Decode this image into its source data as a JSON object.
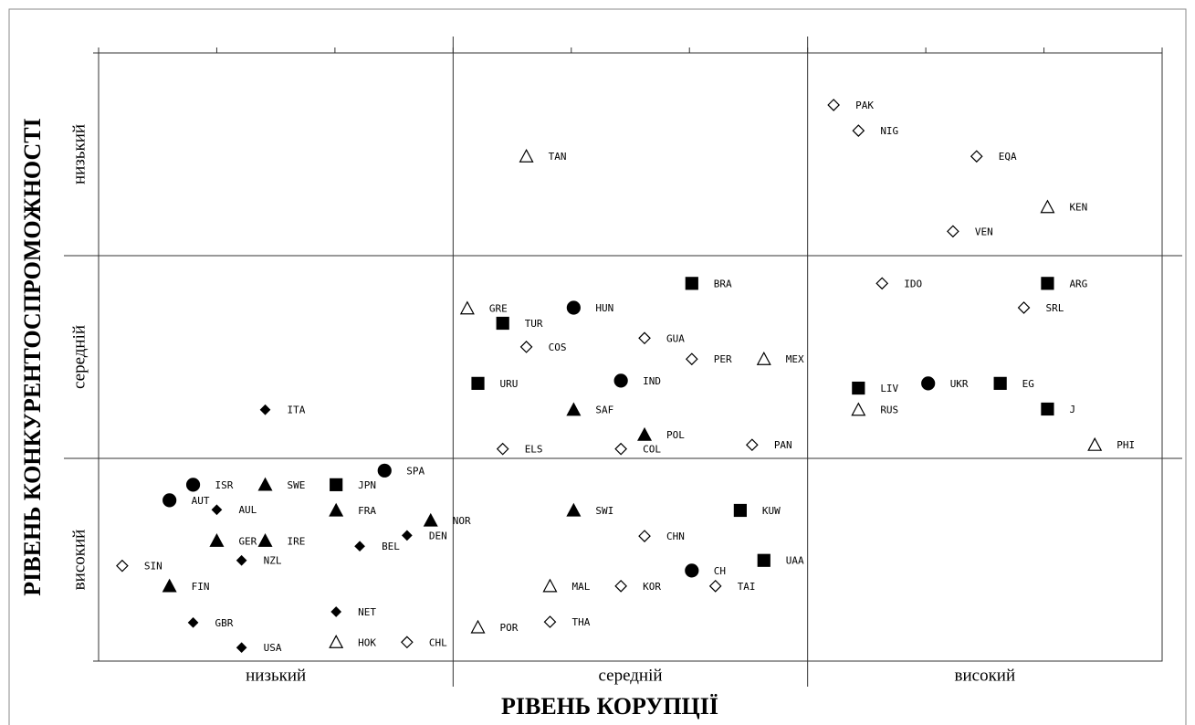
{
  "chart_data": {
    "type": "scatter",
    "xlabel": "РІВЕНЬ КОРУПЦІЇ",
    "ylabel": "РІВЕНЬ КОНКУРЕНТОСПРОМОЖНОСТІ",
    "x_categories": [
      "низький",
      "середній",
      "високий"
    ],
    "y_categories": [
      "високий",
      "середній",
      "низький"
    ],
    "xlim": [
      0,
      9
    ],
    "ylim": [
      0,
      9
    ],
    "xticks": [
      0,
      1,
      2,
      3,
      4,
      5,
      6,
      7,
      8,
      9
    ],
    "yticks": [
      0,
      3,
      6,
      9
    ],
    "xgrid": [
      3,
      6
    ],
    "ygrid": [
      3,
      6
    ],
    "color": "#000000",
    "points": [
      {
        "label": "PAK",
        "x": 6.22,
        "y": 8.23,
        "marker": "diamond-open"
      },
      {
        "label": "NIG",
        "x": 6.43,
        "y": 7.85,
        "marker": "diamond-open"
      },
      {
        "label": "EQA",
        "x": 7.43,
        "y": 7.47,
        "marker": "diamond-open"
      },
      {
        "label": "KEN",
        "x": 8.03,
        "y": 6.72,
        "marker": "triangle-open"
      },
      {
        "label": "VEN",
        "x": 7.23,
        "y": 6.36,
        "marker": "diamond-open"
      },
      {
        "label": "TAN",
        "x": 3.62,
        "y": 7.47,
        "marker": "triangle-open"
      },
      {
        "label": "BRA",
        "x": 5.02,
        "y": 5.59,
        "marker": "square"
      },
      {
        "label": "IDO",
        "x": 6.63,
        "y": 5.59,
        "marker": "diamond-open"
      },
      {
        "label": "ARG",
        "x": 8.03,
        "y": 5.59,
        "marker": "square"
      },
      {
        "label": "GRE",
        "x": 3.12,
        "y": 5.22,
        "marker": "triangle-open"
      },
      {
        "label": "HUN",
        "x": 4.02,
        "y": 5.23,
        "marker": "circle"
      },
      {
        "label": "SRL",
        "x": 7.83,
        "y": 5.23,
        "marker": "diamond-open"
      },
      {
        "label": "TUR",
        "x": 3.42,
        "y": 5.0,
        "marker": "square"
      },
      {
        "label": "GUA",
        "x": 4.62,
        "y": 4.78,
        "marker": "diamond-open"
      },
      {
        "label": "COS",
        "x": 3.62,
        "y": 4.65,
        "marker": "diamond-open"
      },
      {
        "label": "PER",
        "x": 5.02,
        "y": 4.47,
        "marker": "diamond-open"
      },
      {
        "label": "MEX",
        "x": 5.63,
        "y": 4.47,
        "marker": "triangle-open"
      },
      {
        "label": "URU",
        "x": 3.21,
        "y": 4.11,
        "marker": "square"
      },
      {
        "label": "IND",
        "x": 4.42,
        "y": 4.15,
        "marker": "circle"
      },
      {
        "label": "LIV",
        "x": 6.43,
        "y": 4.04,
        "marker": "square"
      },
      {
        "label": "UKR",
        "x": 7.02,
        "y": 4.11,
        "marker": "circle"
      },
      {
        "label": "EG",
        "x": 7.63,
        "y": 4.11,
        "marker": "square"
      },
      {
        "label": "ITA",
        "x": 1.41,
        "y": 3.72,
        "marker": "diamond"
      },
      {
        "label": "SAF",
        "x": 4.02,
        "y": 3.72,
        "marker": "triangle"
      },
      {
        "label": "RUS",
        "x": 6.43,
        "y": 3.72,
        "marker": "triangle-open"
      },
      {
        "label": "J",
        "x": 8.03,
        "y": 3.73,
        "marker": "square"
      },
      {
        "label": "POL",
        "x": 4.62,
        "y": 3.35,
        "marker": "triangle"
      },
      {
        "label": "ELS",
        "x": 3.42,
        "y": 3.14,
        "marker": "diamond-open"
      },
      {
        "label": "COL",
        "x": 4.42,
        "y": 3.14,
        "marker": "diamond-open"
      },
      {
        "label": "PAN",
        "x": 5.53,
        "y": 3.2,
        "marker": "diamond-open"
      },
      {
        "label": "PHI",
        "x": 8.43,
        "y": 3.2,
        "marker": "triangle-open"
      },
      {
        "label": "SPA",
        "x": 2.42,
        "y": 2.82,
        "marker": "circle"
      },
      {
        "label": "ISR",
        "x": 0.8,
        "y": 2.61,
        "marker": "circle"
      },
      {
        "label": "SWE",
        "x": 1.41,
        "y": 2.61,
        "marker": "triangle"
      },
      {
        "label": "JPN",
        "x": 2.01,
        "y": 2.61,
        "marker": "square"
      },
      {
        "label": "AUT",
        "x": 0.6,
        "y": 2.38,
        "marker": "circle"
      },
      {
        "label": "AUL",
        "x": 1.0,
        "y": 2.24,
        "marker": "diamond"
      },
      {
        "label": "FRA",
        "x": 2.01,
        "y": 2.23,
        "marker": "triangle"
      },
      {
        "label": "NOR",
        "x": 2.81,
        "y": 2.08,
        "marker": "triangle"
      },
      {
        "label": "SWI",
        "x": 4.02,
        "y": 2.23,
        "marker": "triangle"
      },
      {
        "label": "KUW",
        "x": 5.43,
        "y": 2.23,
        "marker": "square"
      },
      {
        "label": "DEN",
        "x": 2.61,
        "y": 1.86,
        "marker": "diamond"
      },
      {
        "label": "GER",
        "x": 1.0,
        "y": 1.78,
        "marker": "triangle"
      },
      {
        "label": "IRE",
        "x": 1.41,
        "y": 1.78,
        "marker": "triangle"
      },
      {
        "label": "BEL",
        "x": 2.21,
        "y": 1.7,
        "marker": "diamond"
      },
      {
        "label": "CHN",
        "x": 4.62,
        "y": 1.85,
        "marker": "diamond-open"
      },
      {
        "label": "NZL",
        "x": 1.21,
        "y": 1.49,
        "marker": "diamond"
      },
      {
        "label": "SIN",
        "x": 0.2,
        "y": 1.41,
        "marker": "diamond-open"
      },
      {
        "label": "UAA",
        "x": 5.63,
        "y": 1.49,
        "marker": "square"
      },
      {
        "label": "CH",
        "x": 5.02,
        "y": 1.34,
        "marker": "circle"
      },
      {
        "label": "FIN",
        "x": 0.6,
        "y": 1.11,
        "marker": "triangle"
      },
      {
        "label": "MAL",
        "x": 3.82,
        "y": 1.11,
        "marker": "triangle-open"
      },
      {
        "label": "KOR",
        "x": 4.42,
        "y": 1.11,
        "marker": "diamond-open"
      },
      {
        "label": "TAI",
        "x": 5.22,
        "y": 1.11,
        "marker": "diamond-open"
      },
      {
        "label": "NET",
        "x": 2.01,
        "y": 0.73,
        "marker": "diamond"
      },
      {
        "label": "GBR",
        "x": 0.8,
        "y": 0.57,
        "marker": "diamond"
      },
      {
        "label": "POR",
        "x": 3.21,
        "y": 0.5,
        "marker": "triangle-open"
      },
      {
        "label": "THA",
        "x": 3.82,
        "y": 0.58,
        "marker": "diamond-open"
      },
      {
        "label": "USA",
        "x": 1.21,
        "y": 0.2,
        "marker": "diamond"
      },
      {
        "label": "HOK",
        "x": 2.01,
        "y": 0.28,
        "marker": "triangle-open"
      },
      {
        "label": "CHL",
        "x": 2.61,
        "y": 0.28,
        "marker": "diamond-open"
      }
    ]
  }
}
